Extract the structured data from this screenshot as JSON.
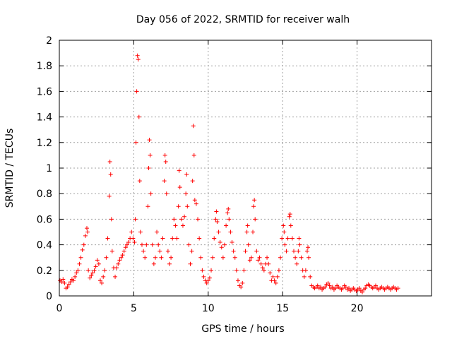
{
  "chart_data": {
    "type": "scatter",
    "title": "Day 056 of 2022, SRMTID for receiver walh",
    "xlabel": "GPS time / hours",
    "ylabel": "SRMTID / TECUs",
    "xlim": [
      0,
      25
    ],
    "ylim": [
      0,
      2
    ],
    "xticks": [
      0,
      5,
      10,
      15,
      20
    ],
    "xtick_labels": [
      "0",
      "5",
      "10",
      "15",
      "20"
    ],
    "yticks": [
      0,
      0.2,
      0.4,
      0.6,
      0.8,
      1,
      1.2,
      1.4,
      1.6,
      1.8,
      2
    ],
    "ytick_labels": [
      "0",
      "0.2",
      "0.4",
      "0.6",
      "0.8",
      "1",
      "1.2",
      "1.4",
      "1.6",
      "1.8",
      "2"
    ],
    "grid": true,
    "marker": "plus",
    "color": "#ff0000",
    "series": [
      {
        "name": "SRMTID",
        "points": [
          [
            0.05,
            0.12
          ],
          [
            0.15,
            0.11
          ],
          [
            0.25,
            0.13
          ],
          [
            0.35,
            0.1
          ],
          [
            0.45,
            0.06
          ],
          [
            0.55,
            0.07
          ],
          [
            0.65,
            0.09
          ],
          [
            0.75,
            0.11
          ],
          [
            0.85,
            0.13
          ],
          [
            0.95,
            0.12
          ],
          [
            1.05,
            0.15
          ],
          [
            1.15,
            0.18
          ],
          [
            1.25,
            0.2
          ],
          [
            1.35,
            0.25
          ],
          [
            1.45,
            0.3
          ],
          [
            1.55,
            0.36
          ],
          [
            1.65,
            0.4
          ],
          [
            1.75,
            0.47
          ],
          [
            1.85,
            0.53
          ],
          [
            1.9,
            0.5
          ],
          [
            1.95,
            0.2
          ],
          [
            2.05,
            0.14
          ],
          [
            2.15,
            0.16
          ],
          [
            2.25,
            0.18
          ],
          [
            2.35,
            0.2
          ],
          [
            2.45,
            0.23
          ],
          [
            2.55,
            0.28
          ],
          [
            2.65,
            0.25
          ],
          [
            2.75,
            0.12
          ],
          [
            2.85,
            0.1
          ],
          [
            2.95,
            0.15
          ],
          [
            3.05,
            0.2
          ],
          [
            3.15,
            0.3
          ],
          [
            3.25,
            0.45
          ],
          [
            3.35,
            0.78
          ],
          [
            3.4,
            1.05
          ],
          [
            3.45,
            0.95
          ],
          [
            3.5,
            0.6
          ],
          [
            3.55,
            0.35
          ],
          [
            3.65,
            0.22
          ],
          [
            3.75,
            0.15
          ],
          [
            3.85,
            0.22
          ],
          [
            3.95,
            0.25
          ],
          [
            4.05,
            0.28
          ],
          [
            4.15,
            0.3
          ],
          [
            4.25,
            0.32
          ],
          [
            4.35,
            0.35
          ],
          [
            4.45,
            0.38
          ],
          [
            4.55,
            0.4
          ],
          [
            4.65,
            0.42
          ],
          [
            4.75,
            0.45
          ],
          [
            4.85,
            0.5
          ],
          [
            4.95,
            0.45
          ],
          [
            5.05,
            0.42
          ],
          [
            5.1,
            0.6
          ],
          [
            5.15,
            1.2
          ],
          [
            5.2,
            1.6
          ],
          [
            5.25,
            1.88
          ],
          [
            5.3,
            1.85
          ],
          [
            5.35,
            1.4
          ],
          [
            5.4,
            0.9
          ],
          [
            5.45,
            0.5
          ],
          [
            5.55,
            0.4
          ],
          [
            5.65,
            0.35
          ],
          [
            5.75,
            0.3
          ],
          [
            5.85,
            0.4
          ],
          [
            5.95,
            0.7
          ],
          [
            6.0,
            1.0
          ],
          [
            6.05,
            1.22
          ],
          [
            6.1,
            1.1
          ],
          [
            6.15,
            0.8
          ],
          [
            6.25,
            0.4
          ],
          [
            6.35,
            0.25
          ],
          [
            6.45,
            0.3
          ],
          [
            6.55,
            0.5
          ],
          [
            6.65,
            0.4
          ],
          [
            6.75,
            0.35
          ],
          [
            6.85,
            0.3
          ],
          [
            6.95,
            0.45
          ],
          [
            7.05,
            0.9
          ],
          [
            7.1,
            1.1
          ],
          [
            7.15,
            1.05
          ],
          [
            7.2,
            0.8
          ],
          [
            7.3,
            0.35
          ],
          [
            7.4,
            0.25
          ],
          [
            7.5,
            0.3
          ],
          [
            7.6,
            0.45
          ],
          [
            7.7,
            0.6
          ],
          [
            7.8,
            0.55
          ],
          [
            7.9,
            0.45
          ],
          [
            8.0,
            0.7
          ],
          [
            8.05,
            0.98
          ],
          [
            8.1,
            0.85
          ],
          [
            8.2,
            0.6
          ],
          [
            8.3,
            0.55
          ],
          [
            8.4,
            0.62
          ],
          [
            8.5,
            0.8
          ],
          [
            8.55,
            0.95
          ],
          [
            8.6,
            0.7
          ],
          [
            8.7,
            0.4
          ],
          [
            8.8,
            0.25
          ],
          [
            8.9,
            0.35
          ],
          [
            8.95,
            0.9
          ],
          [
            9.0,
            1.33
          ],
          [
            9.05,
            1.1
          ],
          [
            9.1,
            0.75
          ],
          [
            9.2,
            0.72
          ],
          [
            9.3,
            0.6
          ],
          [
            9.4,
            0.45
          ],
          [
            9.5,
            0.3
          ],
          [
            9.6,
            0.2
          ],
          [
            9.7,
            0.15
          ],
          [
            9.8,
            0.12
          ],
          [
            9.9,
            0.1
          ],
          [
            10.0,
            0.12
          ],
          [
            10.1,
            0.14
          ],
          [
            10.2,
            0.2
          ],
          [
            10.3,
            0.3
          ],
          [
            10.4,
            0.45
          ],
          [
            10.5,
            0.6
          ],
          [
            10.55,
            0.66
          ],
          [
            10.6,
            0.58
          ],
          [
            10.7,
            0.5
          ],
          [
            10.8,
            0.42
          ],
          [
            10.9,
            0.38
          ],
          [
            11.0,
            0.3
          ],
          [
            11.1,
            0.4
          ],
          [
            11.2,
            0.55
          ],
          [
            11.3,
            0.65
          ],
          [
            11.35,
            0.68
          ],
          [
            11.4,
            0.6
          ],
          [
            11.5,
            0.5
          ],
          [
            11.6,
            0.42
          ],
          [
            11.7,
            0.35
          ],
          [
            11.8,
            0.3
          ],
          [
            11.9,
            0.2
          ],
          [
            12.0,
            0.12
          ],
          [
            12.1,
            0.08
          ],
          [
            12.2,
            0.07
          ],
          [
            12.3,
            0.1
          ],
          [
            12.4,
            0.2
          ],
          [
            12.5,
            0.35
          ],
          [
            12.6,
            0.5
          ],
          [
            12.65,
            0.55
          ],
          [
            12.7,
            0.4
          ],
          [
            12.8,
            0.28
          ],
          [
            12.9,
            0.3
          ],
          [
            13.0,
            0.5
          ],
          [
            13.05,
            0.7
          ],
          [
            13.1,
            0.75
          ],
          [
            13.15,
            0.6
          ],
          [
            13.25,
            0.35
          ],
          [
            13.35,
            0.28
          ],
          [
            13.45,
            0.3
          ],
          [
            13.55,
            0.25
          ],
          [
            13.65,
            0.22
          ],
          [
            13.75,
            0.2
          ],
          [
            13.85,
            0.25
          ],
          [
            13.95,
            0.3
          ],
          [
            14.05,
            0.25
          ],
          [
            14.15,
            0.18
          ],
          [
            14.25,
            0.12
          ],
          [
            14.35,
            0.15
          ],
          [
            14.45,
            0.12
          ],
          [
            14.55,
            0.1
          ],
          [
            14.65,
            0.15
          ],
          [
            14.75,
            0.2
          ],
          [
            14.85,
            0.3
          ],
          [
            14.95,
            0.45
          ],
          [
            15.05,
            0.55
          ],
          [
            15.1,
            0.5
          ],
          [
            15.15,
            0.4
          ],
          [
            15.25,
            0.35
          ],
          [
            15.35,
            0.45
          ],
          [
            15.45,
            0.62
          ],
          [
            15.5,
            0.64
          ],
          [
            15.55,
            0.55
          ],
          [
            15.65,
            0.45
          ],
          [
            15.75,
            0.35
          ],
          [
            15.85,
            0.3
          ],
          [
            15.95,
            0.25
          ],
          [
            16.05,
            0.35
          ],
          [
            16.1,
            0.45
          ],
          [
            16.15,
            0.4
          ],
          [
            16.25,
            0.3
          ],
          [
            16.35,
            0.2
          ],
          [
            16.45,
            0.15
          ],
          [
            16.55,
            0.2
          ],
          [
            16.65,
            0.35
          ],
          [
            16.7,
            0.38
          ],
          [
            16.75,
            0.3
          ],
          [
            16.85,
            0.15
          ],
          [
            16.95,
            0.08
          ],
          [
            17.05,
            0.07
          ],
          [
            17.15,
            0.06
          ],
          [
            17.25,
            0.07
          ],
          [
            17.35,
            0.08
          ],
          [
            17.45,
            0.06
          ],
          [
            17.55,
            0.07
          ],
          [
            17.65,
            0.05
          ],
          [
            17.75,
            0.06
          ],
          [
            17.85,
            0.07
          ],
          [
            17.95,
            0.09
          ],
          [
            18.05,
            0.1
          ],
          [
            18.15,
            0.08
          ],
          [
            18.25,
            0.06
          ],
          [
            18.35,
            0.07
          ],
          [
            18.45,
            0.05
          ],
          [
            18.55,
            0.06
          ],
          [
            18.65,
            0.08
          ],
          [
            18.75,
            0.07
          ],
          [
            18.85,
            0.06
          ],
          [
            18.95,
            0.05
          ],
          [
            19.05,
            0.06
          ],
          [
            19.15,
            0.08
          ],
          [
            19.25,
            0.07
          ],
          [
            19.35,
            0.05
          ],
          [
            19.45,
            0.06
          ],
          [
            19.55,
            0.04
          ],
          [
            19.65,
            0.05
          ],
          [
            19.75,
            0.06
          ],
          [
            19.85,
            0.05
          ],
          [
            19.95,
            0.04
          ],
          [
            20.05,
            0.05
          ],
          [
            20.15,
            0.06
          ],
          [
            20.25,
            0.04
          ],
          [
            20.35,
            0.03
          ],
          [
            20.45,
            0.05
          ],
          [
            20.55,
            0.06
          ],
          [
            20.65,
            0.08
          ],
          [
            20.75,
            0.09
          ],
          [
            20.85,
            0.08
          ],
          [
            20.95,
            0.07
          ],
          [
            21.05,
            0.06
          ],
          [
            21.15,
            0.07
          ],
          [
            21.25,
            0.08
          ],
          [
            21.35,
            0.06
          ],
          [
            21.45,
            0.05
          ],
          [
            21.55,
            0.06
          ],
          [
            21.65,
            0.07
          ],
          [
            21.75,
            0.06
          ],
          [
            21.85,
            0.05
          ],
          [
            21.95,
            0.06
          ],
          [
            22.05,
            0.07
          ],
          [
            22.15,
            0.06
          ],
          [
            22.25,
            0.05
          ],
          [
            22.35,
            0.06
          ],
          [
            22.45,
            0.07
          ],
          [
            22.55,
            0.06
          ],
          [
            22.65,
            0.05
          ],
          [
            22.75,
            0.06
          ]
        ]
      }
    ]
  }
}
